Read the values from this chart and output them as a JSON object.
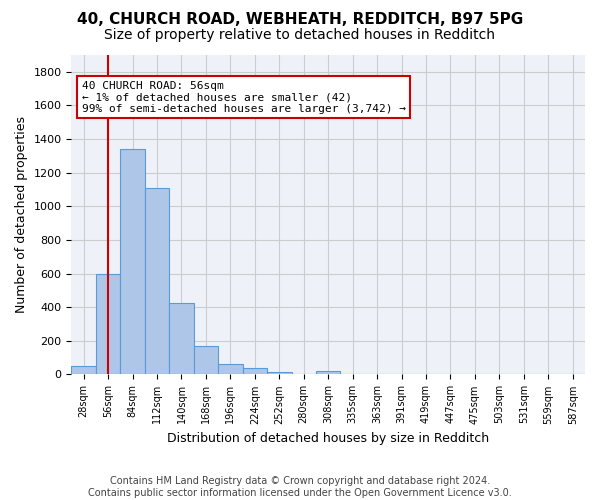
{
  "title1": "40, CHURCH ROAD, WEBHEATH, REDDITCH, B97 5PG",
  "title2": "Size of property relative to detached houses in Redditch",
  "xlabel": "Distribution of detached houses by size in Redditch",
  "ylabel": "Number of detached properties",
  "footnote": "Contains HM Land Registry data © Crown copyright and database right 2024.\nContains public sector information licensed under the Open Government Licence v3.0.",
  "bin_labels": [
    "28sqm",
    "56sqm",
    "84sqm",
    "112sqm",
    "140sqm",
    "168sqm",
    "196sqm",
    "224sqm",
    "252sqm",
    "280sqm",
    "308sqm",
    "335sqm",
    "363sqm",
    "391sqm",
    "419sqm",
    "447sqm",
    "475sqm",
    "503sqm",
    "531sqm",
    "559sqm",
    "587sqm"
  ],
  "bar_values": [
    50,
    600,
    1340,
    1110,
    425,
    170,
    60,
    40,
    15,
    0,
    20,
    0,
    0,
    0,
    0,
    0,
    0,
    0,
    0,
    0,
    0
  ],
  "bar_color": "#aec6e8",
  "bar_edge_color": "#5b9bd5",
  "annotation_box_text": "40 CHURCH ROAD: 56sqm\n← 1% of detached houses are smaller (42)\n99% of semi-detached houses are larger (3,742) →",
  "annotation_box_color": "#ffffff",
  "annotation_box_edge_color": "#cc0000",
  "red_line_x": 1,
  "ylim": [
    0,
    1900
  ],
  "yticks": [
    0,
    200,
    400,
    600,
    800,
    1000,
    1200,
    1400,
    1600,
    1800
  ],
  "grid_color": "#cccccc",
  "background_color": "#eef2f8",
  "title_fontsize": 11,
  "subtitle_fontsize": 10,
  "label_fontsize": 9,
  "tick_fontsize": 8,
  "footnote_fontsize": 7
}
